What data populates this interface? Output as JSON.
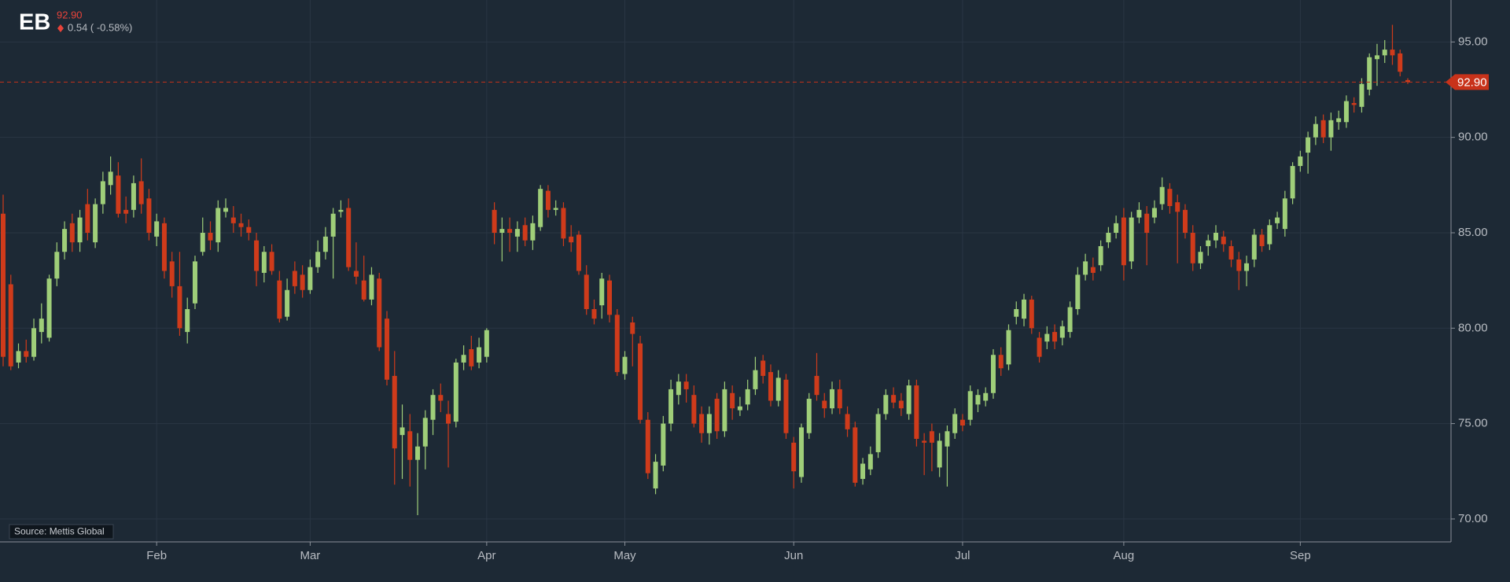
{
  "chart_data": {
    "type": "candlestick",
    "symbol": "EB",
    "price": "92.90",
    "change": "0.54 ( -0.58%)",
    "source": "Source: Mettis Global",
    "last_price": {
      "value": 92.9,
      "label": "92.90"
    },
    "ylim": [
      68.8,
      97.2
    ],
    "yticks": [
      {
        "value": 70,
        "label": "70.00"
      },
      {
        "value": 75,
        "label": "75.00"
      },
      {
        "value": 80,
        "label": "80.00"
      },
      {
        "value": 85,
        "label": "85.00"
      },
      {
        "value": 90,
        "label": "90.00"
      },
      {
        "value": 95,
        "label": "95.00"
      }
    ],
    "grid": true,
    "up_color": "#9fce79",
    "down_color": "#cf3b1b",
    "categories": [
      null,
      null,
      null,
      null,
      null,
      null,
      null,
      null,
      null,
      null,
      null,
      null,
      null,
      null,
      null,
      null,
      null,
      null,
      null,
      null,
      "Feb",
      null,
      null,
      null,
      null,
      null,
      null,
      null,
      null,
      null,
      null,
      null,
      null,
      null,
      null,
      null,
      null,
      null,
      null,
      null,
      "Mar",
      null,
      null,
      null,
      null,
      null,
      null,
      null,
      null,
      null,
      null,
      null,
      null,
      null,
      null,
      null,
      null,
      null,
      null,
      null,
      null,
      null,
      null,
      "Apr",
      null,
      null,
      null,
      null,
      null,
      null,
      null,
      null,
      null,
      null,
      null,
      null,
      null,
      null,
      null,
      null,
      null,
      "May",
      null,
      null,
      null,
      null,
      null,
      null,
      null,
      null,
      null,
      null,
      null,
      null,
      null,
      null,
      null,
      null,
      null,
      null,
      null,
      null,
      null,
      "Jun",
      null,
      null,
      null,
      null,
      null,
      null,
      null,
      null,
      null,
      null,
      null,
      null,
      null,
      null,
      null,
      null,
      null,
      null,
      null,
      null,
      null,
      "Jul",
      null,
      null,
      null,
      null,
      null,
      null,
      null,
      null,
      null,
      null,
      null,
      null,
      null,
      null,
      null,
      null,
      null,
      null,
      null,
      null,
      "Aug",
      null,
      null,
      null,
      null,
      null,
      null,
      null,
      null,
      null,
      null,
      null,
      null,
      null,
      null,
      null,
      null,
      null,
      null,
      null,
      null,
      null,
      null,
      "Sep",
      null,
      null,
      null,
      null,
      null,
      null,
      null,
      null,
      null,
      null,
      null,
      null,
      null,
      null
    ],
    "open": [
      86,
      82.3,
      78.2,
      78.8,
      78.5,
      79.8,
      79.5,
      82.6,
      84,
      85.5,
      84.5,
      86.5,
      84.5,
      86.5,
      87.5,
      88,
      86.2,
      86.2,
      87.7,
      86.8,
      84.8,
      85.5,
      83.5,
      82.2,
      79.8,
      81.3,
      84,
      85,
      84.5,
      86.1,
      85.8,
      85.5,
      85.3,
      84.6,
      82.9,
      84,
      82.5,
      80.6,
      83,
      82.8,
      82,
      83.2,
      84,
      84.8,
      86.1,
      86.3,
      83,
      82.5,
      81.5,
      82.6,
      80.5,
      77.5,
      74.4,
      74.6,
      73.1,
      73.8,
      75.2,
      76.5,
      75.5,
      75.1,
      78.2,
      78.9,
      78.2,
      78.5,
      86.2,
      85,
      85.2,
      84.8,
      85.4,
      84.6,
      85.3,
      87.2,
      86.2,
      86.3,
      84.8,
      84.9,
      82.8,
      81,
      81.2,
      82.5,
      80.7,
      77.6,
      80.3,
      79.2,
      75.2,
      71.6,
      72.8,
      75,
      76.5,
      77.2,
      76.5,
      75.5,
      74.5,
      76.3,
      74.6,
      76.6,
      75.7,
      76,
      76.8,
      78.3,
      77.7,
      76.2,
      77.3,
      74,
      72.2,
      74.5,
      77.5,
      76.2,
      75.8,
      76.8,
      75.5,
      74.8,
      72.1,
      72.6,
      73.5,
      75.5,
      76.5,
      76.2,
      75.5,
      77,
      74.1,
      74.6,
      72.7,
      73.8,
      74.5,
      75.2,
      75.2,
      76,
      76.2,
      76.6,
      78.6,
      78.1,
      80.6,
      80.5,
      81.5,
      79.5,
      79.3,
      79.8,
      79.5,
      79.8,
      81,
      82.8,
      83.2,
      83.3,
      84.5,
      85,
      85.8,
      83.5,
      85.8,
      86,
      85.8,
      86.5,
      87.3,
      86.6,
      86.2,
      85,
      83.4,
      84.3,
      84.6,
      84.8,
      84.3,
      83.6,
      83,
      83.6,
      84.9,
      84.4,
      85.5,
      85.2,
      86.8,
      88.5,
      89.2,
      90,
      90.9,
      90,
      90.8,
      90.8,
      91.8,
      91.6,
      92.5,
      94.1,
      94.3,
      94.6,
      94.4,
      93
    ],
    "high": [
      87,
      82.8,
      79.2,
      79.4,
      80.5,
      81.3,
      82.8,
      84.5,
      85.6,
      86,
      86.2,
      87.3,
      86.8,
      88.2,
      89,
      88.7,
      86.9,
      88,
      88.9,
      87.3,
      86,
      85.8,
      84,
      84,
      81.6,
      83.8,
      85.8,
      85.6,
      86.7,
      86.8,
      86.4,
      86,
      85.7,
      85,
      84.3,
      84.4,
      83,
      82.6,
      83.5,
      83.3,
      83.6,
      84.6,
      85.3,
      86.3,
      86.7,
      86.8,
      84.5,
      83.8,
      83.2,
      82.9,
      80.9,
      78.8,
      76,
      75.5,
      74.5,
      75.7,
      76.8,
      77.1,
      76.2,
      78.4,
      79.1,
      79.6,
      79.5,
      80,
      86.6,
      85.8,
      85.8,
      85.6,
      85.8,
      85.9,
      87.5,
      87.5,
      86.7,
      86.6,
      85.4,
      85.1,
      83.3,
      81.5,
      82.9,
      82.8,
      81,
      78.8,
      80.6,
      79.6,
      75.6,
      73.4,
      75.4,
      77.3,
      77.6,
      77.6,
      77,
      75.9,
      75.9,
      76.6,
      77.2,
      77,
      76.4,
      77.3,
      78.5,
      78.6,
      78.1,
      77.8,
      77.6,
      74.3,
      75,
      76.6,
      78.7,
      76.6,
      77.2,
      77.3,
      75.9,
      75.1,
      73.2,
      73.8,
      75.8,
      76.8,
      76.9,
      76.6,
      77.3,
      77.3,
      74.5,
      75,
      74.5,
      74.9,
      75.8,
      75.5,
      77,
      76.8,
      76.9,
      78.9,
      79,
      80.2,
      81.4,
      81.8,
      81.7,
      79.8,
      80.1,
      80.2,
      80.4,
      81.4,
      83.2,
      83.9,
      83.7,
      84.6,
      85.3,
      85.9,
      86.3,
      86.1,
      86.6,
      86.4,
      86.7,
      87.9,
      87.6,
      87,
      86.5,
      85.4,
      84.3,
      84.9,
      85.4,
      85.1,
      84.6,
      84,
      83.8,
      85.2,
      85.2,
      85.7,
      86.1,
      87.2,
      88.7,
      89.3,
      90.3,
      91.1,
      91.2,
      91.3,
      91.4,
      92.2,
      92.1,
      93.1,
      94.4,
      94.9,
      95.1,
      95.9,
      94.6,
      93.1
    ],
    "low": [
      78,
      77.8,
      77.9,
      78.2,
      78.3,
      79.2,
      79.3,
      82.2,
      83.6,
      84,
      84,
      84.6,
      84.2,
      86,
      87,
      85.8,
      85.5,
      85.8,
      86,
      84.6,
      84.3,
      82.6,
      81.6,
      79.6,
      79.2,
      81,
      83.8,
      84.1,
      84,
      85.8,
      85,
      84.8,
      84.6,
      82.2,
      82.4,
      82.8,
      80.3,
      80.4,
      81.8,
      81.6,
      81.8,
      82.9,
      83.6,
      82.6,
      85.8,
      83,
      82.3,
      81.4,
      81.2,
      78.8,
      77,
      71.8,
      72.1,
      71.7,
      70.2,
      72.6,
      74.4,
      75.6,
      72.7,
      74.8,
      77.8,
      77.8,
      77.9,
      78.2,
      84.4,
      83.5,
      84,
      84,
      84.3,
      84.1,
      85.1,
      85.8,
      85.9,
      84.3,
      84,
      82.8,
      80.7,
      80.2,
      80.5,
      80.3,
      77.5,
      77.3,
      78,
      75,
      72.1,
      71.3,
      72.5,
      74.6,
      76,
      76.1,
      74.8,
      74,
      73.9,
      74.2,
      74.3,
      75.2,
      75.4,
      75.7,
      76.5,
      77.1,
      75.9,
      75.9,
      74.2,
      71.6,
      71.9,
      74.2,
      76.2,
      75.3,
      75.5,
      75.5,
      74.3,
      71.7,
      71.8,
      72.3,
      73.2,
      75.2,
      75.8,
      75.4,
      75.2,
      73.8,
      72.3,
      72.5,
      72.2,
      71.7,
      74.2,
      74.6,
      74.9,
      75.6,
      75.9,
      76.3,
      77.5,
      77.8,
      80.2,
      80.1,
      79.7,
      78.2,
      78.9,
      78.9,
      79.1,
      79.5,
      80.7,
      82.5,
      82.5,
      83,
      84.2,
      84.7,
      82.5,
      83.1,
      85.5,
      83.3,
      85.5,
      86.2,
      86,
      83.4,
      84.7,
      83,
      83.1,
      83.8,
      84.2,
      84,
      83.2,
      82,
      82.2,
      83.2,
      84,
      84.1,
      85.2,
      84.8,
      86.5,
      88.2,
      88.1,
      89.6,
      89.7,
      89.3,
      90.4,
      90.5,
      91.3,
      91.3,
      92.2,
      92.7,
      93.9,
      93.8,
      93.2,
      92.8
    ],
    "close": [
      78.5,
      78,
      78.8,
      78.5,
      80,
      80.5,
      82.6,
      84,
      85.2,
      84.5,
      85.8,
      85,
      86.5,
      87.7,
      88.2,
      86,
      86,
      87.6,
      86.5,
      85,
      85.6,
      83,
      82.2,
      80,
      81,
      83.5,
      85,
      84.6,
      86.3,
      86.3,
      85.5,
      85.3,
      85,
      83,
      84,
      83,
      80.5,
      82,
      82.2,
      82,
      83.2,
      84,
      84.8,
      86,
      86.2,
      83.2,
      82.7,
      81.5,
      82.8,
      79,
      77.3,
      73.7,
      74.8,
      73.1,
      73.8,
      75.3,
      76.5,
      76.2,
      75,
      78.2,
      78.6,
      78,
      79,
      79.9,
      85,
      85.2,
      85,
      85.2,
      84.6,
      85.5,
      87.3,
      86.2,
      86.3,
      84.7,
      84.5,
      83,
      81,
      80.5,
      82.6,
      80.7,
      77.7,
      78.5,
      79.7,
      75.2,
      72.4,
      73,
      75,
      76.8,
      77.2,
      76.8,
      75,
      74.5,
      75.5,
      74.6,
      76.8,
      75.8,
      75.9,
      76.8,
      77.8,
      77.5,
      76.2,
      77.4,
      74.5,
      72.5,
      74.8,
      76.3,
      76.5,
      75.8,
      76.8,
      75.8,
      74.7,
      71.9,
      72.9,
      73.4,
      75.5,
      76.5,
      76.1,
      75.8,
      77,
      74.2,
      74,
      74,
      74.1,
      74.6,
      75.5,
      74.9,
      76.7,
      76.5,
      76.6,
      78.6,
      77.9,
      79.9,
      81,
      81.5,
      80,
      78.5,
      79.7,
      79.3,
      80.1,
      81.1,
      82.8,
      83.5,
      82.9,
      84.3,
      85,
      85.5,
      83.3,
      85.8,
      86.2,
      85,
      86.3,
      87.4,
      86.4,
      86.1,
      85,
      83.4,
      84,
      84.6,
      85,
      84.4,
      83.6,
      83,
      83.4,
      84.9,
      84.3,
      85.4,
      85.8,
      86.8,
      88.5,
      89,
      90,
      90.7,
      90,
      90.9,
      91,
      91.9,
      91.7,
      92.8,
      94.2,
      94.3,
      94.6,
      94.3,
      93.44,
      92.9
    ]
  }
}
